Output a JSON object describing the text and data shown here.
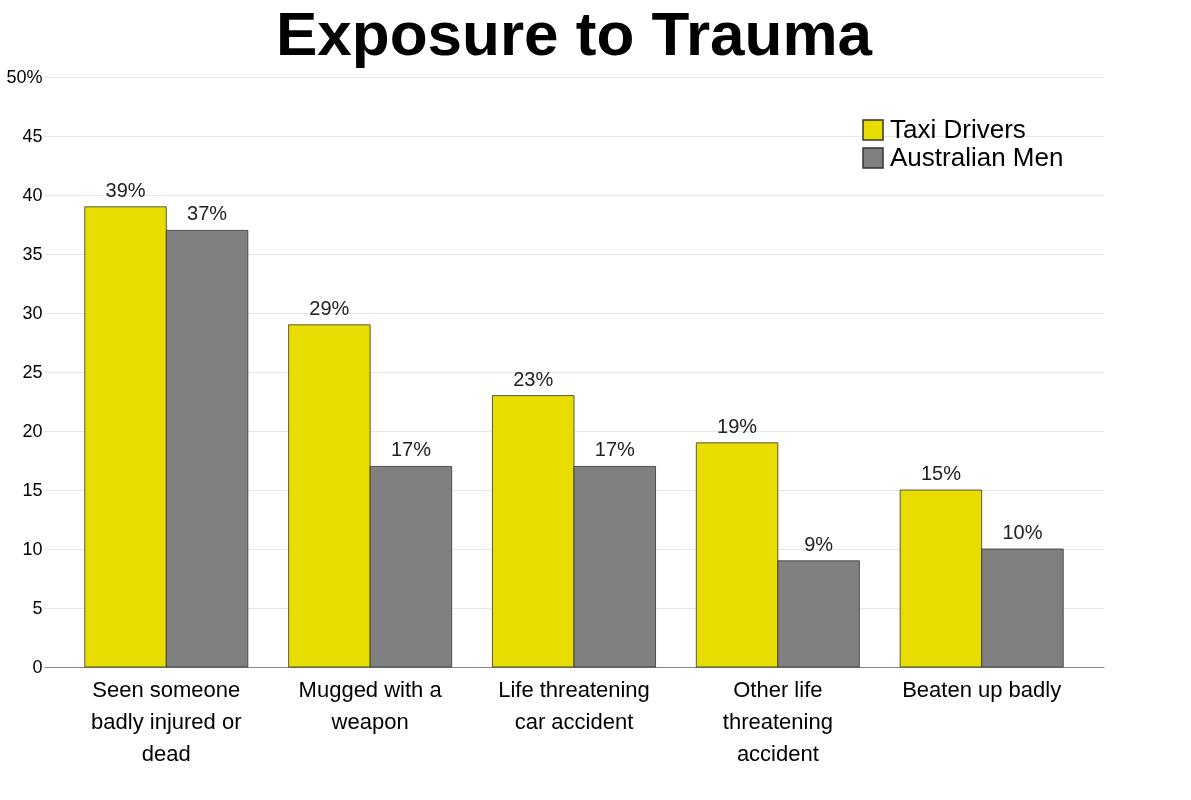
{
  "chart_data": {
    "type": "bar",
    "title": "Exposure to Trauma",
    "categories": [
      "Seen someone badly injured or dead",
      "Mugged with a weapon",
      "Life threatening car accident",
      "Other life threatening accident",
      "Beaten up badly"
    ],
    "series": [
      {
        "name": "Taxi Drivers",
        "color": "#e8dc00",
        "values": [
          39,
          29,
          23,
          19,
          15
        ],
        "value_labels": [
          "39%",
          "29%",
          "23%",
          "19%",
          "15%"
        ]
      },
      {
        "name": "Australian Men",
        "color": "#808080",
        "values": [
          37,
          17,
          17,
          9,
          10
        ],
        "value_labels": [
          "37%",
          "17%",
          "17%",
          "9%",
          "10%"
        ]
      }
    ],
    "ylim": [
      0,
      50
    ],
    "yticks": [
      0,
      5,
      10,
      15,
      20,
      25,
      30,
      35,
      40,
      45,
      {
        "value": 50,
        "label": "50%"
      }
    ],
    "grid": "y",
    "legend": "top right"
  }
}
